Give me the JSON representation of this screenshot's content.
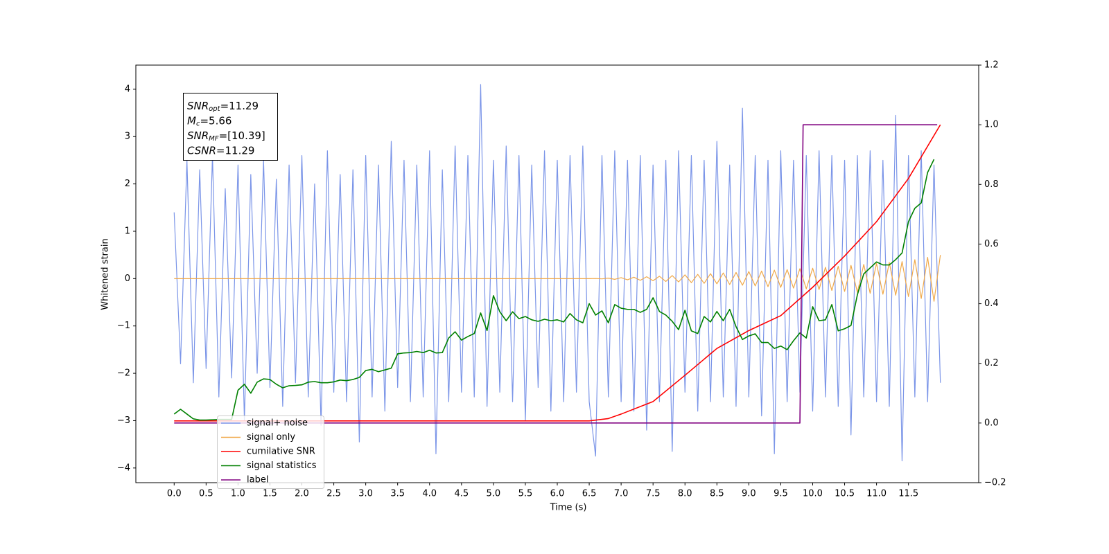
{
  "chart_data": {
    "type": "line",
    "xlabel": "Time (s)",
    "ylabel": "Whitened strain",
    "xlim": [
      -0.6,
      12.6
    ],
    "ylim": [
      -4.31,
      4.51
    ],
    "y2lim": [
      -0.2,
      1.2
    ],
    "xticks": [
      {
        "value": 0,
        "label": "0.0"
      },
      0.5,
      {
        "value": 1,
        "label": "1.0"
      },
      1.5,
      {
        "value": 2,
        "label": "2.0"
      },
      2.5,
      {
        "value": 3,
        "label": "3.0"
      },
      3.5,
      {
        "value": 4,
        "label": "4.0"
      },
      4.5,
      {
        "value": 5,
        "label": "5.0"
      },
      5.5,
      {
        "value": 6,
        "label": "6.0"
      },
      6.5,
      {
        "value": 7,
        "label": "7.0"
      },
      7.5,
      {
        "value": 8,
        "label": "8.0"
      },
      8.5,
      {
        "value": 9,
        "label": "9.0"
      },
      9.5,
      {
        "value": 10,
        "label": "10.0"
      },
      10.5,
      {
        "value": 11,
        "label": "11.0"
      },
      11.5
    ],
    "yticks": [
      {
        "value": -4,
        "label": "−4"
      },
      {
        "value": -3,
        "label": "−3"
      },
      {
        "value": -2,
        "label": "−2"
      },
      {
        "value": -1,
        "label": "−1"
      },
      0,
      1,
      2,
      3,
      4
    ],
    "y2ticks": [
      {
        "value": -0.2,
        "label": "−0.2"
      },
      {
        "value": 0,
        "label": "0.0"
      },
      0.2,
      0.4,
      0.6,
      0.8,
      {
        "value": 1,
        "label": "1.0"
      },
      1.2
    ],
    "legend": "lower left",
    "annotation": [
      {
        "symbol": "SNR",
        "sub": "opt",
        "text": "=11.29"
      },
      {
        "symbol": "M",
        "sub": "c",
        "text": "=5.66"
      },
      {
        "symbol": "SNR",
        "sub": "MF",
        "text": "=[10.39]"
      },
      {
        "symbol": "CSNR",
        "text": "=11.29"
      }
    ],
    "series": [
      {
        "name": "signal+ noise",
        "color": "#7b95e8",
        "x": [
          0,
          0.1,
          0.2,
          0.3,
          0.4,
          0.5,
          0.6,
          0.7,
          0.8,
          0.9,
          1,
          1.1,
          1.2,
          1.3,
          1.4,
          1.5,
          1.6,
          1.7,
          1.8,
          1.9,
          2,
          2.1,
          2.2,
          2.3,
          2.4,
          2.5,
          2.6,
          2.7,
          2.8,
          2.9,
          3,
          3.1,
          3.2,
          3.3,
          3.4,
          3.5,
          3.6,
          3.7,
          3.8,
          3.9,
          4,
          4.1,
          4.2,
          4.3,
          4.4,
          4.5,
          4.6,
          4.7,
          4.8,
          4.9,
          5,
          5.1,
          5.2,
          5.3,
          5.4,
          5.5,
          5.6,
          5.7,
          5.8,
          5.9,
          6,
          6.1,
          6.2,
          6.3,
          6.4,
          6.5,
          6.6,
          6.7,
          6.8,
          6.9,
          7,
          7.1,
          7.2,
          7.3,
          7.4,
          7.5,
          7.6,
          7.7,
          7.8,
          7.9,
          8,
          8.1,
          8.2,
          8.3,
          8.4,
          8.5,
          8.6,
          8.7,
          8.8,
          8.9,
          9,
          9.1,
          9.2,
          9.3,
          9.4,
          9.5,
          9.6,
          9.7,
          9.8,
          9.9,
          10,
          10.1,
          10.2,
          10.3,
          10.4,
          10.5,
          10.6,
          10.7,
          10.8,
          10.9,
          11,
          11.1,
          11.2,
          11.3,
          11.4,
          11.5,
          11.6,
          11.7,
          11.8,
          11.9,
          12
        ],
        "values": [
          1.4,
          -1.8,
          2.5,
          -2.2,
          2.3,
          -1.9,
          2.6,
          -2.5,
          1.9,
          -2.1,
          2.4,
          -3.0,
          2.2,
          -2.0,
          2.5,
          -2.3,
          2.1,
          -2.7,
          2.4,
          -2.2,
          2.6,
          -2.5,
          2.0,
          -3.1,
          2.7,
          -2.4,
          2.2,
          -2.6,
          2.3,
          -3.45,
          2.6,
          -2.5,
          2.4,
          -2.8,
          2.9,
          -2.3,
          2.5,
          -2.6,
          2.4,
          -2.5,
          2.7,
          -3.7,
          2.3,
          -2.6,
          2.8,
          -2.4,
          2.6,
          -2.5,
          4.1,
          -2.7,
          2.5,
          -2.4,
          2.8,
          -2.6,
          2.6,
          -3.0,
          2.4,
          -2.3,
          2.7,
          -2.8,
          2.5,
          -2.6,
          2.6,
          -2.4,
          2.8,
          -2.6,
          -3.75,
          2.6,
          -2.5,
          2.7,
          -2.6,
          2.5,
          -2.8,
          2.6,
          -3.2,
          2.4,
          -2.6,
          2.5,
          -3.65,
          2.7,
          -2.4,
          2.6,
          -2.8,
          2.5,
          -2.6,
          2.9,
          -2.5,
          2.4,
          -2.7,
          3.6,
          -2.5,
          2.6,
          -2.9,
          2.5,
          -3.7,
          2.7,
          -2.6,
          2.5,
          -2.4,
          2.6,
          -2.8,
          2.7,
          -2.5,
          2.6,
          -2.7,
          2.5,
          -3.3,
          2.6,
          -2.5,
          2.7,
          -2.6,
          2.5,
          -2.7,
          3.45,
          -3.85,
          2.6,
          -2.5,
          2.7,
          -2.6,
          2.4,
          -2.2
        ]
      },
      {
        "name": "signal only",
        "color": "#f0a848",
        "x": [
          0,
          6.5,
          6.6,
          6.7,
          6.8,
          6.9,
          7,
          7.1,
          7.2,
          7.3,
          7.4,
          7.5,
          7.6,
          7.7,
          7.8,
          7.9,
          8,
          8.1,
          8.2,
          8.3,
          8.4,
          8.5,
          8.6,
          8.7,
          8.8,
          8.9,
          9,
          9.1,
          9.2,
          9.3,
          9.4,
          9.5,
          9.6,
          9.7,
          9.8,
          9.9,
          10,
          10.1,
          10.2,
          10.3,
          10.4,
          10.5,
          10.6,
          10.7,
          10.8,
          10.9,
          11,
          11.1,
          11.2,
          11.3,
          11.4,
          11.5,
          11.6,
          11.7,
          11.8,
          11.9,
          12
        ],
        "values": [
          0,
          0,
          0.002,
          -0.005,
          0.01,
          -0.015,
          0.02,
          -0.025,
          0.03,
          -0.035,
          0.04,
          -0.045,
          0.05,
          -0.06,
          0.065,
          -0.07,
          0.08,
          -0.085,
          0.09,
          -0.1,
          0.105,
          -0.11,
          0.12,
          -0.125,
          0.13,
          -0.14,
          0.15,
          -0.155,
          0.16,
          -0.17,
          0.18,
          -0.185,
          0.19,
          -0.2,
          0.21,
          -0.215,
          0.22,
          -0.23,
          0.24,
          -0.25,
          0.26,
          -0.27,
          0.28,
          -0.29,
          0.3,
          -0.31,
          0.32,
          -0.33,
          0.34,
          -0.35,
          0.36,
          -0.38,
          0.4,
          -0.42,
          0.45,
          -0.48,
          0.5
        ]
      },
      {
        "name": "cumilative SNR",
        "color": "red",
        "axis": "y2",
        "x": [
          0,
          6.5,
          6.8,
          7,
          7.5,
          8,
          8.5,
          9,
          9.5,
          10,
          10.5,
          11,
          11.5,
          12
        ],
        "values": [
          0.007,
          0.007,
          0.015,
          0.03,
          0.072,
          0.16,
          0.25,
          0.31,
          0.36,
          0.455,
          0.56,
          0.675,
          0.82,
          1.0
        ]
      },
      {
        "name": "signal statistics",
        "color": "green",
        "axis": "y2",
        "x": [
          0,
          0.1,
          0.2,
          0.3,
          0.4,
          0.5,
          0.6,
          0.7,
          0.8,
          0.9,
          1,
          1.1,
          1.2,
          1.3,
          1.4,
          1.5,
          1.6,
          1.7,
          1.8,
          1.9,
          2,
          2.1,
          2.2,
          2.3,
          2.4,
          2.5,
          2.6,
          2.7,
          2.8,
          2.9,
          3,
          3.1,
          3.2,
          3.3,
          3.4,
          3.5,
          3.6,
          3.7,
          3.8,
          3.9,
          4,
          4.1,
          4.2,
          4.3,
          4.4,
          4.5,
          4.6,
          4.7,
          4.8,
          4.9,
          5,
          5.1,
          5.2,
          5.3,
          5.4,
          5.5,
          5.6,
          5.7,
          5.8,
          5.9,
          6,
          6.1,
          6.2,
          6.3,
          6.4,
          6.5,
          6.6,
          6.7,
          6.8,
          6.9,
          7,
          7.1,
          7.2,
          7.3,
          7.4,
          7.5,
          7.6,
          7.7,
          7.8,
          7.9,
          8,
          8.1,
          8.2,
          8.3,
          8.4,
          8.5,
          8.6,
          8.7,
          8.8,
          8.9,
          9,
          9.1,
          9.2,
          9.3,
          9.4,
          9.5,
          9.6,
          9.7,
          9.8,
          9.9,
          10,
          10.1,
          10.2,
          10.3,
          10.4,
          10.5,
          10.6,
          10.7,
          10.8,
          10.9,
          11,
          11.1,
          11.2,
          11.3,
          11.4,
          11.5,
          11.6,
          11.7,
          11.8,
          11.9
        ],
        "values": [
          0.03,
          0.046,
          0.03,
          0.014,
          0.01,
          0.01,
          0.011,
          0.012,
          0.012,
          0.012,
          0.11,
          0.13,
          0.1,
          0.137,
          0.148,
          0.146,
          0.13,
          0.118,
          0.125,
          0.126,
          0.128,
          0.137,
          0.139,
          0.135,
          0.135,
          0.138,
          0.144,
          0.142,
          0.146,
          0.153,
          0.176,
          0.18,
          0.172,
          0.178,
          0.184,
          0.232,
          0.235,
          0.236,
          0.24,
          0.236,
          0.244,
          0.235,
          0.236,
          0.285,
          0.306,
          0.278,
          0.29,
          0.3,
          0.369,
          0.31,
          0.427,
          0.373,
          0.343,
          0.373,
          0.35,
          0.357,
          0.346,
          0.341,
          0.348,
          0.343,
          0.346,
          0.339,
          0.367,
          0.346,
          0.336,
          0.4,
          0.362,
          0.376,
          0.336,
          0.397,
          0.385,
          0.381,
          0.381,
          0.371,
          0.381,
          0.42,
          0.374,
          0.362,
          0.341,
          0.313,
          0.378,
          0.309,
          0.3,
          0.357,
          0.339,
          0.374,
          0.343,
          0.381,
          0.323,
          0.28,
          0.292,
          0.299,
          0.27,
          0.27,
          0.25,
          0.258,
          0.246,
          0.276,
          0.302,
          0.285,
          0.39,
          0.343,
          0.346,
          0.397,
          0.309,
          0.316,
          0.327,
          0.43,
          0.5,
          0.52,
          0.54,
          0.53,
          0.53,
          0.548,
          0.57,
          0.675,
          0.72,
          0.738,
          0.84,
          0.884
        ]
      },
      {
        "name": "label",
        "color": "purple",
        "axis": "y2",
        "x": [
          0,
          9.8,
          9.85,
          11.95
        ],
        "values": [
          0,
          0,
          1,
          1
        ]
      }
    ]
  }
}
